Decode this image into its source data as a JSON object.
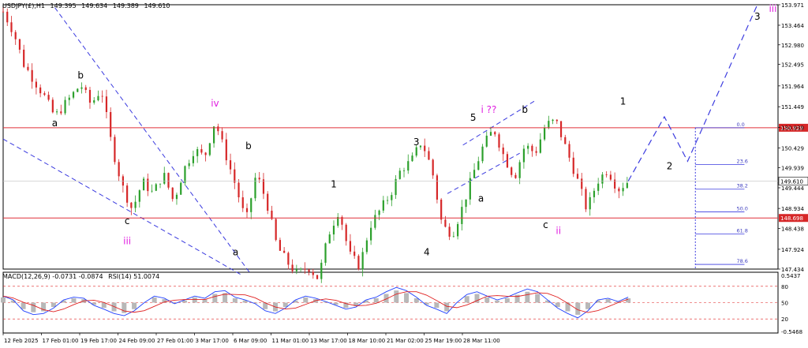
{
  "header": {
    "symbol": "USDJPY(£),H1",
    "open": "149.395",
    "high": "149.634",
    "low": "149.389",
    "close": "149.610"
  },
  "indicator_header": {
    "macd": "MACD(12,26,9) -0.0731 -0.0874",
    "rsi": "RSI(14) 51.0074"
  },
  "colors": {
    "bull": "#2ca02c",
    "bear": "#d62728",
    "wave_line": "#3a3adf",
    "horizontal_level": "#e0303a",
    "price_tag_bg": "#d62728",
    "magenta": "#e020e0",
    "macd_hist": "#b8b8b8",
    "rsi_line": "#1f3fff",
    "signal_line": "#e02020",
    "fib_text": "#4040c0"
  },
  "chart_data": {
    "type": "line",
    "title": "",
    "price_scale": {
      "min": 147.434,
      "max": 153.971,
      "ticks": [
        "153.971",
        "153.464",
        "152.980",
        "152.495",
        "151.964",
        "151.449",
        "150.939",
        "150.429",
        "149.939",
        "149.444",
        "148.934",
        "148.438",
        "147.924",
        "147.434"
      ]
    },
    "x_ticks": [
      "12 Feb 2025",
      "17 Feb 01:00",
      "19 Feb 17:00",
      "24 Feb 09:00",
      "27 Feb 01:00",
      "3 Mar 17:00",
      "6 Mar 09:00",
      "11 Mar 01:00",
      "13 Mar 17:00",
      "18 Mar 10:00",
      "21 Mar 02:00",
      "25 Mar 19:00",
      "28 Mar 11:00"
    ],
    "price_path": [
      {
        "t": 0,
        "p": 153.8
      },
      {
        "t": 4,
        "p": 153.3
      },
      {
        "t": 8,
        "p": 152.5
      },
      {
        "t": 12,
        "p": 152.1
      },
      {
        "t": 16,
        "p": 151.7
      },
      {
        "t": 20,
        "p": 151.2
      },
      {
        "t": 25,
        "p": 151.6
      },
      {
        "t": 30,
        "p": 152.0
      },
      {
        "t": 34,
        "p": 151.5
      },
      {
        "t": 38,
        "p": 151.9
      },
      {
        "t": 42,
        "p": 150.5
      },
      {
        "t": 46,
        "p": 149.5
      },
      {
        "t": 50,
        "p": 148.9
      },
      {
        "t": 54,
        "p": 149.6
      },
      {
        "t": 58,
        "p": 149.3
      },
      {
        "t": 62,
        "p": 149.8
      },
      {
        "t": 66,
        "p": 149.1
      },
      {
        "t": 70,
        "p": 149.9
      },
      {
        "t": 74,
        "p": 150.4
      },
      {
        "t": 78,
        "p": 150.2
      },
      {
        "t": 82,
        "p": 151.1
      },
      {
        "t": 86,
        "p": 150.3
      },
      {
        "t": 90,
        "p": 149.5
      },
      {
        "t": 94,
        "p": 148.6
      },
      {
        "t": 98,
        "p": 149.8
      },
      {
        "t": 102,
        "p": 149.1
      },
      {
        "t": 106,
        "p": 148.0
      },
      {
        "t": 110,
        "p": 147.6
      },
      {
        "t": 114,
        "p": 147.3
      },
      {
        "t": 118,
        "p": 147.5
      },
      {
        "t": 122,
        "p": 147.2
      },
      {
        "t": 126,
        "p": 148.3
      },
      {
        "t": 130,
        "p": 148.9
      },
      {
        "t": 134,
        "p": 147.8
      },
      {
        "t": 138,
        "p": 147.5
      },
      {
        "t": 142,
        "p": 148.5
      },
      {
        "t": 146,
        "p": 148.9
      },
      {
        "t": 150,
        "p": 149.3
      },
      {
        "t": 154,
        "p": 149.9
      },
      {
        "t": 158,
        "p": 150.1
      },
      {
        "t": 162,
        "p": 150.6
      },
      {
        "t": 166,
        "p": 149.9
      },
      {
        "t": 170,
        "p": 148.5
      },
      {
        "t": 174,
        "p": 148.3
      },
      {
        "t": 178,
        "p": 149.0
      },
      {
        "t": 182,
        "p": 149.8
      },
      {
        "t": 186,
        "p": 150.5
      },
      {
        "t": 190,
        "p": 150.9
      },
      {
        "t": 194,
        "p": 150.2
      },
      {
        "t": 198,
        "p": 149.7
      },
      {
        "t": 202,
        "p": 150.5
      },
      {
        "t": 206,
        "p": 150.3
      },
      {
        "t": 210,
        "p": 151.0
      },
      {
        "t": 214,
        "p": 151.1
      },
      {
        "t": 218,
        "p": 150.4
      },
      {
        "t": 222,
        "p": 149.7
      },
      {
        "t": 226,
        "p": 148.9
      },
      {
        "t": 230,
        "p": 149.6
      },
      {
        "t": 234,
        "p": 149.9
      },
      {
        "t": 238,
        "p": 149.4
      },
      {
        "t": 242,
        "p": 149.61
      }
    ],
    "horizontal_levels": [
      {
        "price": 150.929,
        "label": "150.929"
      },
      {
        "price": 148.698,
        "label": "148.698"
      }
    ],
    "current_price": {
      "price": 149.61,
      "label": "149.610"
    },
    "fib_levels": [
      {
        "label": "0.0",
        "price": 150.929
      },
      {
        "label": "23.6",
        "price": 150.02
      },
      {
        "label": "38.2",
        "price": 149.41
      },
      {
        "label": "50.0",
        "price": 148.85
      },
      {
        "label": "61.8",
        "price": 148.3
      },
      {
        "label": "78.6",
        "price": 147.55
      }
    ],
    "wave_labels": [
      {
        "text": "b",
        "t": 30,
        "p": 152.15,
        "color": "black"
      },
      {
        "text": "a",
        "t": 20,
        "p": 150.97,
        "color": "black"
      },
      {
        "text": "iv",
        "t": 82,
        "p": 151.45,
        "color": "magenta"
      },
      {
        "text": "b",
        "t": 95,
        "p": 150.4,
        "color": "black"
      },
      {
        "text": "c",
        "t": 48,
        "p": 148.55,
        "color": "black"
      },
      {
        "text": "iii",
        "t": 48,
        "p": 148.05,
        "color": "magenta"
      },
      {
        "text": "a",
        "t": 90,
        "p": 147.78,
        "color": "black"
      },
      {
        "text": "1",
        "t": 128,
        "p": 149.45,
        "color": "black"
      },
      {
        "text": "3",
        "t": 160,
        "p": 150.5,
        "color": "black"
      },
      {
        "text": "4",
        "t": 164,
        "p": 147.78,
        "color": "black"
      },
      {
        "text": "i ??",
        "t": 188,
        "p": 151.3,
        "color": "magenta"
      },
      {
        "text": "5",
        "t": 182,
        "p": 151.1,
        "color": "black"
      },
      {
        "text": "b",
        "t": 202,
        "p": 151.3,
        "color": "black"
      },
      {
        "text": "a",
        "t": 185,
        "p": 149.1,
        "color": "black"
      },
      {
        "text": "c",
        "t": 210,
        "p": 148.45,
        "color": "black"
      },
      {
        "text": "ii",
        "t": 215,
        "p": 148.3,
        "color": "magenta"
      },
      {
        "text": "1",
        "t": 240,
        "p": 151.5,
        "color": "black"
      },
      {
        "text": "2",
        "t": 258,
        "p": 149.9,
        "color": "black"
      },
      {
        "text": "3",
        "t": 292,
        "p": 153.6,
        "color": "black"
      },
      {
        "text": "iii",
        "t": 298,
        "p": 153.8,
        "color": "magenta"
      }
    ],
    "projection_path": [
      {
        "t": 242,
        "p": 149.61
      },
      {
        "t": 256,
        "p": 151.2
      },
      {
        "t": 265,
        "p": 150.1
      },
      {
        "t": 292,
        "p": 153.971
      }
    ],
    "indicator": {
      "scale_labels": [
        "0.5437",
        "80",
        "50",
        "20",
        "-0.5468"
      ],
      "rsi_levels": [
        80,
        50,
        20
      ],
      "rsi": [
        62,
        55,
        35,
        28,
        30,
        40,
        55,
        60,
        58,
        45,
        38,
        30,
        26,
        35,
        50,
        62,
        58,
        48,
        55,
        62,
        58,
        70,
        72,
        60,
        55,
        48,
        35,
        30,
        40,
        55,
        62,
        58,
        52,
        45,
        38,
        42,
        55,
        60,
        70,
        78,
        72,
        60,
        45,
        38,
        30,
        50,
        65,
        70,
        62,
        55,
        60,
        68,
        75,
        70,
        55,
        40,
        30,
        22,
        35,
        55,
        58,
        52,
        60
      ]
    }
  }
}
